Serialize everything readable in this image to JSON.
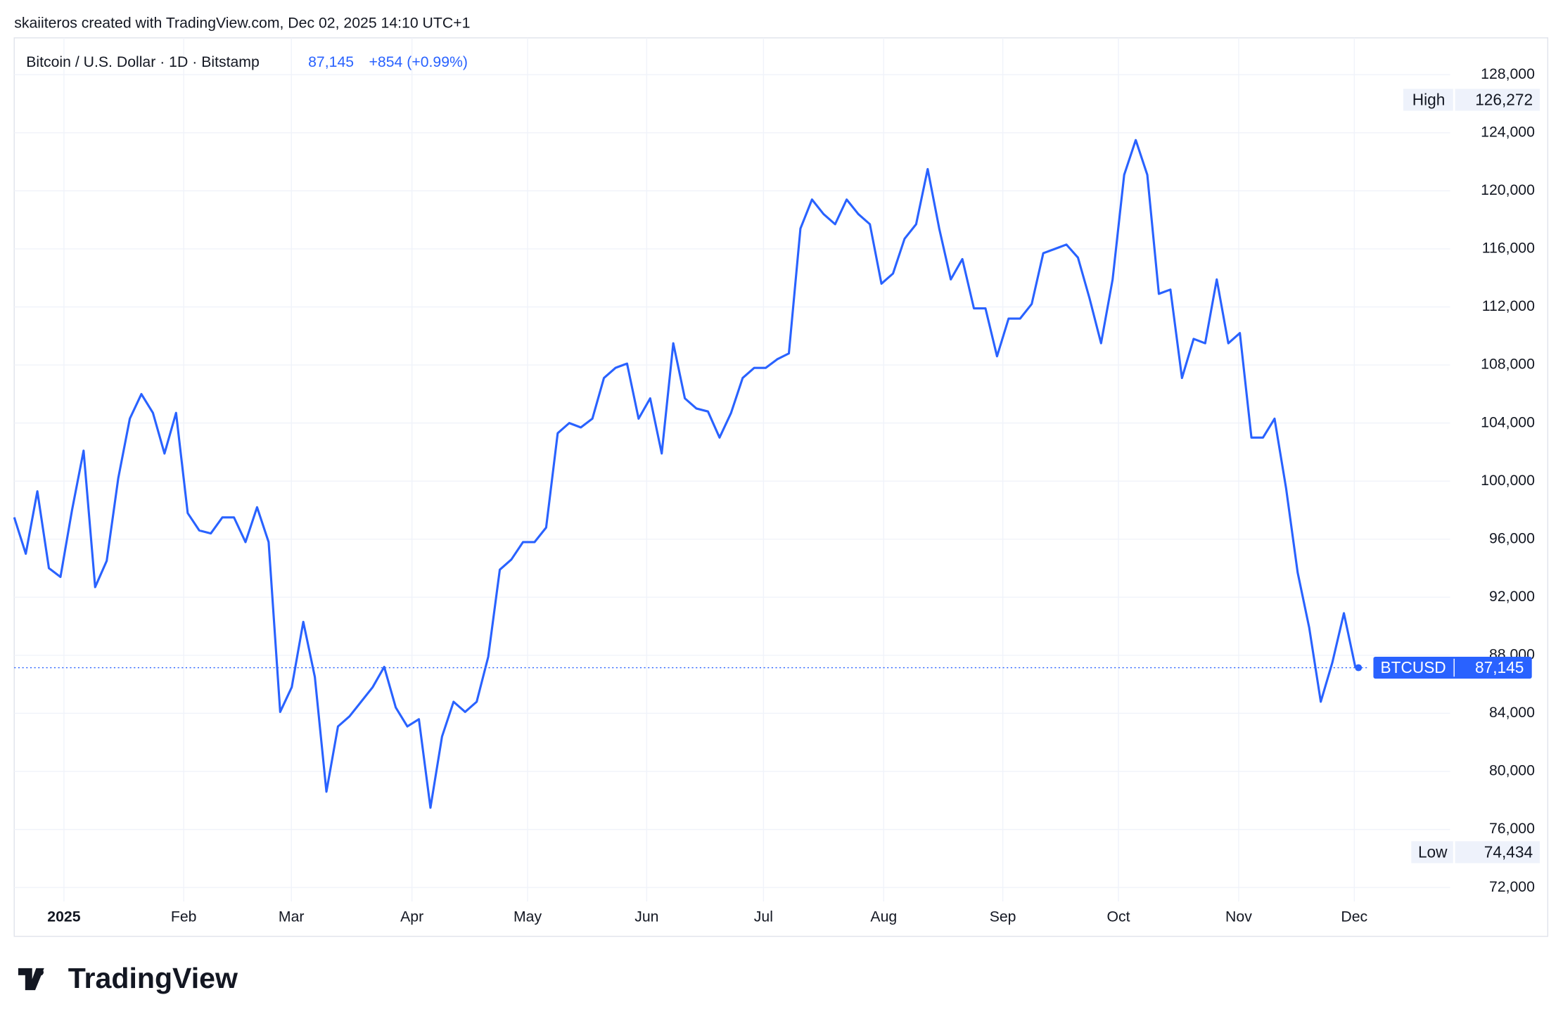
{
  "header": {
    "credit": "skaiiteros created with TradingView.com, Dec 02, 2025 14:10 UTC+1",
    "symbol": "Bitcoin / U.S. Dollar · 1D · Bitstamp",
    "change": "+854 (+0.99%)"
  },
  "chart_data": {
    "type": "line",
    "color": "#2962ff",
    "grid": true,
    "values": [
      97500,
      95000,
      99300,
      94000,
      93400,
      98000,
      102100,
      92700,
      94500,
      100200,
      104300,
      106000,
      104700,
      101900,
      104700,
      97800,
      96600,
      96400,
      97500,
      97500,
      95800,
      98200,
      95800,
      84100,
      85800,
      90300,
      86500,
      78600,
      83100,
      83800,
      84800,
      85800,
      87200,
      84400,
      83100,
      83600,
      77500,
      82400,
      84800,
      84100,
      84800,
      87900,
      93900,
      94600,
      95800,
      95800,
      96800,
      103300,
      104000,
      103700,
      104300,
      107100,
      107800,
      108100,
      104300,
      105700,
      101900,
      109500,
      105700,
      105000,
      104800,
      103000,
      104700,
      107100,
      107800,
      107800,
      108400,
      108800,
      117400,
      119400,
      118400,
      117700,
      119400,
      118400,
      117700,
      113600,
      114300,
      116700,
      117700,
      121500,
      117400,
      113900,
      115300,
      111900,
      111900,
      108600,
      111200,
      111200,
      112200,
      115700,
      116000,
      116300,
      115400,
      112600,
      109500,
      113900,
      121100,
      123500,
      121100,
      112900,
      113200,
      107100,
      109800,
      109500,
      113900,
      109500,
      110200,
      103000,
      103000,
      104300,
      99500,
      93700,
      89900,
      84800,
      87500,
      90900,
      87145
    ],
    "xlim": [
      0,
      116
    ],
    "xticks": [
      {
        "value": 4.3,
        "label": "2025"
      },
      {
        "value": 14.66,
        "label": "Feb"
      },
      {
        "value": 23.97,
        "label": "Mar"
      },
      {
        "value": 34.4,
        "label": "Apr"
      },
      {
        "value": 44.4,
        "label": "May"
      },
      {
        "value": 54.7,
        "label": "Jun"
      },
      {
        "value": 64.8,
        "label": "Jul"
      },
      {
        "value": 75.2,
        "label": "Aug"
      },
      {
        "value": 85.5,
        "label": "Sep"
      },
      {
        "value": 95.5,
        "label": "Oct"
      },
      {
        "value": 105.9,
        "label": "Nov"
      },
      {
        "value": 115.9,
        "label": "Dec"
      }
    ],
    "ylim": [
      72000,
      128000
    ],
    "yticks": [
      {
        "value": 72000,
        "label": "72,000"
      },
      {
        "value": 76000,
        "label": "76,000"
      },
      {
        "value": 80000,
        "label": "80,000"
      },
      {
        "value": 84000,
        "label": "84,000"
      },
      {
        "value": 88000,
        "label": "88,000"
      },
      {
        "value": 92000,
        "label": "92,000"
      },
      {
        "value": 96000,
        "label": "96,000"
      },
      {
        "value": 100000,
        "label": "100,000"
      },
      {
        "value": 104000,
        "label": "104,000"
      },
      {
        "value": 108000,
        "label": "108,000"
      },
      {
        "value": 112000,
        "label": "112,000"
      },
      {
        "value": 116000,
        "label": "116,000"
      },
      {
        "value": 120000,
        "label": "120,000"
      },
      {
        "value": 124000,
        "label": "124,000"
      },
      {
        "value": 128000,
        "label": "128,000"
      }
    ],
    "last": {
      "name": "BTCUSD",
      "value": 87145,
      "label": "87,145"
    },
    "high": {
      "name": "High",
      "value": 126272,
      "label": "126,272"
    },
    "low": {
      "name": "Low",
      "value": 74434,
      "label": "74,434"
    }
  },
  "brand": "TradingView"
}
